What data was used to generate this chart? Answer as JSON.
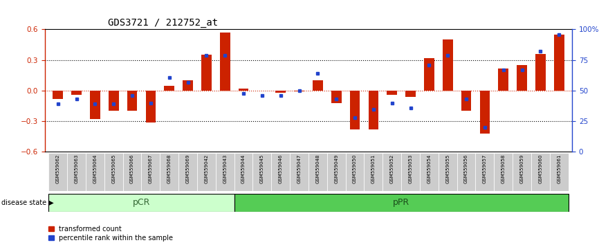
{
  "title": "GDS3721 / 212752_at",
  "samples": [
    "GSM559062",
    "GSM559063",
    "GSM559064",
    "GSM559065",
    "GSM559066",
    "GSM559067",
    "GSM559068",
    "GSM559069",
    "GSM559042",
    "GSM559043",
    "GSM559044",
    "GSM559045",
    "GSM559046",
    "GSM559047",
    "GSM559048",
    "GSM559049",
    "GSM559050",
    "GSM559051",
    "GSM559052",
    "GSM559053",
    "GSM559054",
    "GSM559055",
    "GSM559056",
    "GSM559057",
    "GSM559058",
    "GSM559059",
    "GSM559060",
    "GSM559061"
  ],
  "transformed_count": [
    -0.08,
    -0.04,
    -0.28,
    -0.2,
    -0.2,
    -0.31,
    0.05,
    0.1,
    0.35,
    0.57,
    0.02,
    0.0,
    -0.02,
    -0.01,
    0.1,
    -0.12,
    -0.38,
    -0.38,
    -0.04,
    -0.06,
    0.32,
    0.5,
    -0.2,
    -0.42,
    0.22,
    0.25,
    0.36,
    0.55
  ],
  "percentile_rank": [
    39,
    43,
    39,
    39,
    46,
    40,
    61,
    57,
    79,
    79,
    48,
    46,
    46,
    50,
    64,
    43,
    28,
    35,
    40,
    36,
    71,
    79,
    43,
    20,
    67,
    67,
    82,
    96
  ],
  "pCR_count": 10,
  "pCR_label": "pCR",
  "pPR_label": "pPR",
  "disease_state_label": "disease state",
  "ylim_left": [
    -0.6,
    0.6
  ],
  "ylim_right": [
    0,
    100
  ],
  "yticks_left": [
    -0.6,
    -0.3,
    0.0,
    0.3,
    0.6
  ],
  "yticks_right": [
    0,
    25,
    50,
    75,
    100
  ],
  "bar_color": "#cc2200",
  "dot_color": "#2244cc",
  "pCR_color": "#ccffcc",
  "pPR_color": "#55cc55",
  "title_color": "#000000",
  "legend_items": [
    "transformed count",
    "percentile rank within the sample"
  ]
}
